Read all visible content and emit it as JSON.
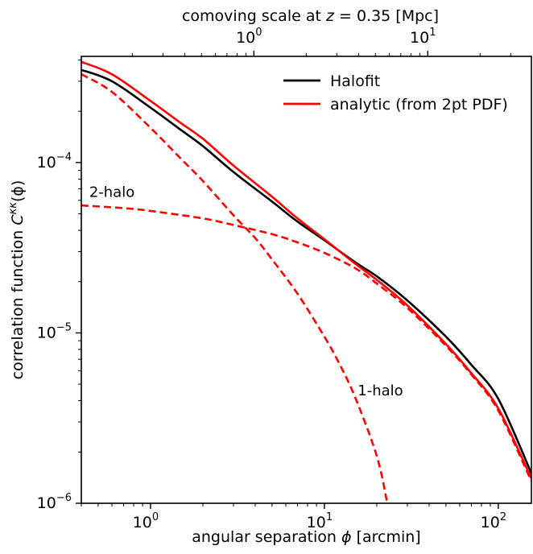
{
  "chart_data": {
    "type": "line",
    "xscale": "log",
    "yscale": "log",
    "xlabel_prefix": "angular separation ",
    "xlabel_var": "ϕ",
    "xlabel_unit": " [arcmin]",
    "ylabel_prefix": "correlation function ",
    "ylabel_var": "C",
    "ylabel_sup": "κκ",
    "ylabel_suffix": "(ϕ)",
    "xlim": [
      0.4,
      155
    ],
    "ylim": [
      1e-06,
      0.00042
    ],
    "xticks": [
      {
        "base": "10",
        "exp": "0",
        "value": 1
      },
      {
        "base": "10",
        "exp": "1",
        "value": 10
      },
      {
        "base": "10",
        "exp": "2",
        "value": 100
      }
    ],
    "yticks": [
      {
        "base": "10",
        "exp": "−6",
        "value": 1e-06
      },
      {
        "base": "10",
        "exp": "−5",
        "value": 1e-05
      },
      {
        "base": "10",
        "exp": "−4",
        "value": 0.0001
      }
    ],
    "top_axis": {
      "label_prefix": "comoving scale at ",
      "label_var": "z",
      "label_eq": " = 0.35 [Mpc]",
      "ticks": [
        {
          "base": "10",
          "exp": "0",
          "value": 1
        },
        {
          "base": "10",
          "exp": "1",
          "value": 10
        }
      ],
      "arcmin_per_mpc": 3.93
    },
    "legend": {
      "position": "upper right",
      "entries": [
        {
          "label": "Halofit",
          "color": "#000000"
        },
        {
          "label": "analytic (from 2pt PDF)",
          "color": "#ff0000"
        }
      ]
    },
    "series": [
      {
        "name": "Halofit",
        "color": "#000000",
        "style": "solid",
        "x": [
          0.4,
          0.6,
          1.0,
          1.5,
          2.0,
          3.0,
          5.0,
          7.0,
          10,
          15,
          20,
          30,
          50,
          70,
          100,
          155
        ],
        "y": [
          0.00035,
          0.0003,
          0.00021,
          0.000155,
          0.000125,
          8.8e-05,
          5.9e-05,
          4.5e-05,
          3.5e-05,
          2.6e-05,
          2.15e-05,
          1.55e-05,
          9.5e-06,
          6.5e-06,
          4.1e-06,
          1.5e-06
        ]
      },
      {
        "name": "analytic (from 2pt PDF)",
        "color": "#ff0000",
        "style": "solid",
        "x": [
          0.4,
          0.6,
          1.0,
          1.5,
          2.0,
          3.0,
          5.0,
          7.0,
          10,
          15,
          20,
          30,
          50,
          70,
          100,
          155
        ],
        "y": [
          0.00039,
          0.00033,
          0.00023,
          0.00017,
          0.000138,
          9.6e-05,
          6.3e-05,
          4.7e-05,
          3.55e-05,
          2.55e-05,
          2.05e-05,
          1.45e-05,
          8.6e-06,
          5.8e-06,
          3.6e-06,
          1.4e-06
        ]
      },
      {
        "name": "",
        "color": "#ff0000",
        "style": "dashed",
        "x": [
          0.4,
          0.6,
          1.0,
          1.5,
          2.0,
          3.0,
          4.0,
          5.0,
          7.0,
          10,
          12,
          15,
          20,
          23
        ],
        "y": [
          0.00033,
          0.00026,
          0.00016,
          0.000105,
          7.8e-05,
          4.9e-05,
          3.6e-05,
          2.7e-05,
          1.7e-05,
          9.5e-06,
          6.8e-06,
          4.2e-06,
          1.9e-06,
          1e-06
        ]
      },
      {
        "name": "",
        "color": "#ff0000",
        "style": "dashed",
        "x": [
          0.4,
          0.7,
          1.0,
          2.0,
          3.0,
          5.0,
          7.0,
          10,
          15,
          20,
          30,
          50,
          70,
          100,
          155
        ],
        "y": [
          5.6e-05,
          5.4e-05,
          5.2e-05,
          4.7e-05,
          4.3e-05,
          3.8e-05,
          3.4e-05,
          2.95e-05,
          2.4e-05,
          1.95e-05,
          1.4e-05,
          8.4e-06,
          5.7e-06,
          3.5e-06,
          1.35e-06
        ]
      }
    ],
    "annotations": [
      {
        "text": "2-halo",
        "x": 0.6,
        "y": 6.3e-05
      },
      {
        "text": "1-halo",
        "x": 21,
        "y": 4.3e-06
      }
    ]
  }
}
